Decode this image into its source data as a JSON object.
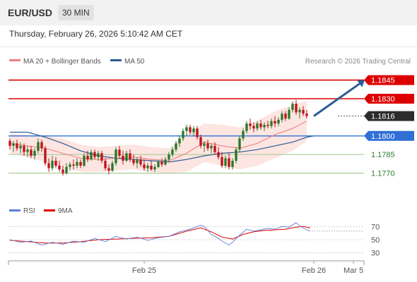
{
  "header": {
    "symbol": "EUR/USD",
    "timeframe": "30 MIN"
  },
  "datetime": "Thursday, February 26, 2026 5:10:42 AM CET",
  "legend": {
    "ma20_label": "MA 20 + Bollinger Bands",
    "ma50_label": "MA 50",
    "ma20_color": "#f08080",
    "ma50_color": "#2d5b94",
    "source": "Research © 2026 Trading Central"
  },
  "rsi_legend": {
    "rsi_label": "RSI",
    "ma_label": "9MA",
    "rsi_color": "#5b7fd6",
    "ma_color": "#dd0000"
  },
  "colors": {
    "up": "#2a7a2a",
    "down": "#c0141c",
    "resistance": "#dd0000",
    "support_main": "#2f6fd6",
    "support_minor": "#a9cc98"
  },
  "chart_data": {
    "type": "candlestick",
    "ylim": [
      1.1755,
      1.1855
    ],
    "levels": [
      {
        "label": "1.1845",
        "value": 1.1845,
        "kind": "resistance"
      },
      {
        "label": "1.1830",
        "value": 1.183,
        "kind": "resistance"
      },
      {
        "label": "1.1816",
        "value": 1.1816,
        "kind": "last-price"
      },
      {
        "label": "1.1800",
        "value": 1.18,
        "kind": "pivot"
      },
      {
        "label": "1.1785",
        "value": 1.1785,
        "kind": "support"
      },
      {
        "label": "1.1770",
        "value": 1.177,
        "kind": "support"
      }
    ],
    "x_labels": [
      {
        "label": "Feb 25",
        "index": 38
      },
      {
        "label": "Feb 26",
        "index": 86
      },
      {
        "label": "Mar 5",
        "index": 98
      }
    ],
    "candles": [
      [
        1.1796,
        1.1798,
        1.1789,
        1.1792
      ],
      [
        1.1792,
        1.1796,
        1.1787,
        1.1794
      ],
      [
        1.1794,
        1.1797,
        1.1788,
        1.179
      ],
      [
        1.179,
        1.1795,
        1.1786,
        1.1792
      ],
      [
        1.1792,
        1.1794,
        1.1784,
        1.1787
      ],
      [
        1.1787,
        1.1792,
        1.1783,
        1.1789
      ],
      [
        1.1789,
        1.1792,
        1.1782,
        1.1784
      ],
      [
        1.1784,
        1.179,
        1.1781,
        1.1788
      ],
      [
        1.1788,
        1.1798,
        1.1786,
        1.1795
      ],
      [
        1.1795,
        1.1797,
        1.1787,
        1.179
      ],
      [
        1.179,
        1.1792,
        1.1776,
        1.1778
      ],
      [
        1.1778,
        1.1782,
        1.1771,
        1.1774
      ],
      [
        1.1774,
        1.1784,
        1.1772,
        1.178
      ],
      [
        1.178,
        1.1783,
        1.1774,
        1.1776
      ],
      [
        1.1776,
        1.178,
        1.1771,
        1.1773
      ],
      [
        1.1773,
        1.1776,
        1.1768,
        1.177
      ],
      [
        1.177,
        1.1778,
        1.1769,
        1.1775
      ],
      [
        1.1775,
        1.1779,
        1.1772,
        1.1777
      ],
      [
        1.1777,
        1.1781,
        1.1773,
        1.1776
      ],
      [
        1.1776,
        1.1782,
        1.1774,
        1.1779
      ],
      [
        1.1779,
        1.1781,
        1.1774,
        1.1776
      ],
      [
        1.1776,
        1.1786,
        1.1775,
        1.1784
      ],
      [
        1.1784,
        1.1788,
        1.1779,
        1.1781
      ],
      [
        1.1781,
        1.1789,
        1.178,
        1.1787
      ],
      [
        1.1787,
        1.1789,
        1.1781,
        1.1783
      ],
      [
        1.1783,
        1.1788,
        1.178,
        1.1786
      ],
      [
        1.1786,
        1.1788,
        1.1778,
        1.178
      ],
      [
        1.178,
        1.1782,
        1.1772,
        1.1774
      ],
      [
        1.1774,
        1.1777,
        1.1769,
        1.1772
      ],
      [
        1.1772,
        1.178,
        1.1771,
        1.1778
      ],
      [
        1.1778,
        1.1791,
        1.1776,
        1.1789
      ],
      [
        1.1789,
        1.1792,
        1.1782,
        1.1784
      ],
      [
        1.1784,
        1.1788,
        1.1777,
        1.178
      ],
      [
        1.178,
        1.1788,
        1.1779,
        1.1786
      ],
      [
        1.1786,
        1.1789,
        1.1779,
        1.1781
      ],
      [
        1.1781,
        1.1785,
        1.1776,
        1.1778
      ],
      [
        1.1778,
        1.1783,
        1.1774,
        1.1781
      ],
      [
        1.1781,
        1.1784,
        1.1775,
        1.1777
      ],
      [
        1.1777,
        1.1781,
        1.1772,
        1.1774
      ],
      [
        1.1774,
        1.1778,
        1.1771,
        1.1776
      ],
      [
        1.1776,
        1.178,
        1.1772,
        1.1773
      ],
      [
        1.1773,
        1.1777,
        1.1771,
        1.1775
      ],
      [
        1.1775,
        1.1781,
        1.1774,
        1.1779
      ],
      [
        1.1779,
        1.1782,
        1.1775,
        1.1777
      ],
      [
        1.1777,
        1.1783,
        1.1776,
        1.1781
      ],
      [
        1.1781,
        1.1787,
        1.1779,
        1.1785
      ],
      [
        1.1785,
        1.1791,
        1.1783,
        1.1789
      ],
      [
        1.1789,
        1.1796,
        1.1787,
        1.1794
      ],
      [
        1.1794,
        1.18,
        1.1791,
        1.1798
      ],
      [
        1.1798,
        1.1806,
        1.1796,
        1.1804
      ],
      [
        1.1804,
        1.1809,
        1.18,
        1.1807
      ],
      [
        1.1807,
        1.1809,
        1.1801,
        1.1803
      ],
      [
        1.1803,
        1.1808,
        1.18,
        1.1806
      ],
      [
        1.1806,
        1.1808,
        1.1797,
        1.1799
      ],
      [
        1.1799,
        1.1801,
        1.179,
        1.1792
      ],
      [
        1.1792,
        1.1796,
        1.1787,
        1.1794
      ],
      [
        1.1794,
        1.1797,
        1.1788,
        1.179
      ],
      [
        1.179,
        1.1794,
        1.1786,
        1.1792
      ],
      [
        1.1792,
        1.1795,
        1.1785,
        1.1787
      ],
      [
        1.1787,
        1.1791,
        1.1781,
        1.1783
      ],
      [
        1.1783,
        1.1787,
        1.1774,
        1.1776
      ],
      [
        1.1776,
        1.1784,
        1.1774,
        1.1782
      ],
      [
        1.1782,
        1.1786,
        1.1773,
        1.1775
      ],
      [
        1.1775,
        1.1782,
        1.1773,
        1.178
      ],
      [
        1.178,
        1.1791,
        1.1778,
        1.1789
      ],
      [
        1.1789,
        1.18,
        1.1787,
        1.1798
      ],
      [
        1.1798,
        1.1806,
        1.1796,
        1.1804
      ],
      [
        1.1804,
        1.1812,
        1.1802,
        1.181
      ],
      [
        1.181,
        1.1814,
        1.1805,
        1.1808
      ],
      [
        1.1808,
        1.1811,
        1.1803,
        1.1806
      ],
      [
        1.1806,
        1.1812,
        1.1804,
        1.181
      ],
      [
        1.181,
        1.1813,
        1.1805,
        1.1807
      ],
      [
        1.1807,
        1.1811,
        1.1804,
        1.1809
      ],
      [
        1.1809,
        1.1812,
        1.1806,
        1.1808
      ],
      [
        1.1808,
        1.1814,
        1.1806,
        1.1812
      ],
      [
        1.1812,
        1.1816,
        1.1807,
        1.181
      ],
      [
        1.181,
        1.1815,
        1.1808,
        1.1813
      ],
      [
        1.1813,
        1.182,
        1.1811,
        1.1818
      ],
      [
        1.1818,
        1.182,
        1.1812,
        1.1814
      ],
      [
        1.1814,
        1.1823,
        1.1813,
        1.1821
      ],
      [
        1.1821,
        1.1828,
        1.1819,
        1.1826
      ],
      [
        1.1826,
        1.1829,
        1.1817,
        1.1819
      ],
      [
        1.1819,
        1.1823,
        1.1814,
        1.1821
      ],
      [
        1.1821,
        1.1824,
        1.1816,
        1.1818
      ],
      [
        1.1818,
        1.1821,
        1.1814,
        1.1816
      ]
    ],
    "ma20": [
      [
        0,
        1.1794
      ],
      [
        5,
        1.1792
      ],
      [
        10,
        1.179
      ],
      [
        15,
        1.1786
      ],
      [
        20,
        1.1782
      ],
      [
        25,
        1.1781
      ],
      [
        30,
        1.1782
      ],
      [
        35,
        1.1783
      ],
      [
        40,
        1.1781
      ],
      [
        45,
        1.178
      ],
      [
        50,
        1.1786
      ],
      [
        55,
        1.1795
      ],
      [
        60,
        1.1792
      ],
      [
        65,
        1.179
      ],
      [
        70,
        1.1794
      ],
      [
        75,
        1.1801
      ],
      [
        80,
        1.1806
      ],
      [
        84,
        1.1812
      ]
    ],
    "bb_upper": [
      [
        0,
        1.1802
      ],
      [
        5,
        1.1801
      ],
      [
        10,
        1.18
      ],
      [
        15,
        1.1798
      ],
      [
        20,
        1.1793
      ],
      [
        25,
        1.1791
      ],
      [
        30,
        1.1792
      ],
      [
        35,
        1.1793
      ],
      [
        40,
        1.1791
      ],
      [
        45,
        1.179
      ],
      [
        50,
        1.1801
      ],
      [
        55,
        1.181
      ],
      [
        60,
        1.1809
      ],
      [
        65,
        1.1807
      ],
      [
        70,
        1.1812
      ],
      [
        75,
        1.182
      ],
      [
        80,
        1.1825
      ],
      [
        84,
        1.1828
      ]
    ],
    "bb_lower": [
      [
        0,
        1.1786
      ],
      [
        5,
        1.1783
      ],
      [
        10,
        1.1779
      ],
      [
        15,
        1.1774
      ],
      [
        20,
        1.1771
      ],
      [
        25,
        1.1771
      ],
      [
        30,
        1.1772
      ],
      [
        35,
        1.1773
      ],
      [
        40,
        1.1771
      ],
      [
        45,
        1.177
      ],
      [
        50,
        1.1771
      ],
      [
        55,
        1.1779
      ],
      [
        60,
        1.1776
      ],
      [
        65,
        1.1773
      ],
      [
        70,
        1.1776
      ],
      [
        75,
        1.1782
      ],
      [
        80,
        1.1788
      ],
      [
        84,
        1.1796
      ]
    ],
    "ma50": [
      [
        0,
        1.1803
      ],
      [
        5,
        1.1803
      ],
      [
        10,
        1.1799
      ],
      [
        15,
        1.1794
      ],
      [
        20,
        1.1788
      ],
      [
        25,
        1.1784
      ],
      [
        30,
        1.1782
      ],
      [
        35,
        1.1781
      ],
      [
        40,
        1.178
      ],
      [
        45,
        1.1779
      ],
      [
        50,
        1.1781
      ],
      [
        55,
        1.1784
      ],
      [
        60,
        1.1786
      ],
      [
        65,
        1.1787
      ],
      [
        70,
        1.1789
      ],
      [
        75,
        1.1792
      ],
      [
        80,
        1.1795
      ],
      [
        84,
        1.1799
      ],
      [
        86,
        1.18
      ]
    ],
    "projection": {
      "from": [
        84,
        1.1816
      ],
      "to": [
        96,
        1.1845
      ]
    },
    "rsi": {
      "ylim": [
        20,
        80
      ],
      "levels": [
        {
          "label": "70",
          "value": 70
        },
        {
          "label": "50",
          "value": 50
        },
        {
          "label": "30",
          "value": 30
        }
      ],
      "rsi": [
        [
          0,
          50
        ],
        [
          3,
          46
        ],
        [
          6,
          48
        ],
        [
          9,
          42
        ],
        [
          12,
          46
        ],
        [
          15,
          43
        ],
        [
          18,
          48
        ],
        [
          21,
          46
        ],
        [
          24,
          52
        ],
        [
          27,
          47
        ],
        [
          30,
          55
        ],
        [
          33,
          51
        ],
        [
          36,
          54
        ],
        [
          39,
          49
        ],
        [
          42,
          53
        ],
        [
          45,
          55
        ],
        [
          48,
          62
        ],
        [
          51,
          66
        ],
        [
          54,
          72
        ],
        [
          55,
          70
        ],
        [
          57,
          58
        ],
        [
          59,
          52
        ],
        [
          60,
          48
        ],
        [
          62,
          42
        ],
        [
          63,
          46
        ],
        [
          65,
          57
        ],
        [
          67,
          66
        ],
        [
          69,
          63
        ],
        [
          71,
          65
        ],
        [
          73,
          67
        ],
        [
          75,
          66
        ],
        [
          77,
          70
        ],
        [
          79,
          69
        ],
        [
          81,
          76
        ],
        [
          82,
          71
        ],
        [
          84,
          65
        ],
        [
          85,
          63
        ]
      ],
      "ma": [
        [
          0,
          49
        ],
        [
          5,
          47
        ],
        [
          10,
          45
        ],
        [
          15,
          45
        ],
        [
          20,
          47
        ],
        [
          25,
          50
        ],
        [
          30,
          51
        ],
        [
          35,
          52
        ],
        [
          40,
          53
        ],
        [
          45,
          55
        ],
        [
          50,
          63
        ],
        [
          54,
          68
        ],
        [
          57,
          62
        ],
        [
          60,
          54
        ],
        [
          63,
          51
        ],
        [
          66,
          58
        ],
        [
          69,
          62
        ],
        [
          72,
          64
        ],
        [
          75,
          65
        ],
        [
          78,
          66
        ],
        [
          81,
          69
        ],
        [
          83,
          70
        ],
        [
          85,
          68
        ]
      ],
      "last_rsi": 63
    }
  }
}
